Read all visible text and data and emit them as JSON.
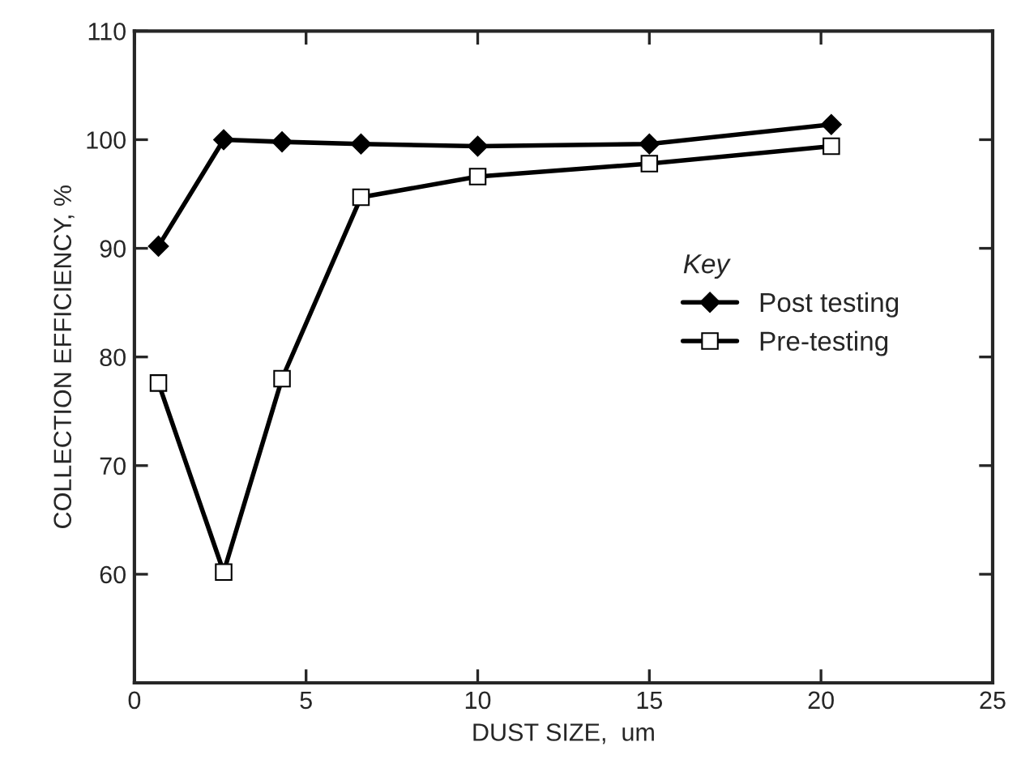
{
  "chart_data": {
    "type": "line",
    "xlabel": "DUST SIZE,  um",
    "ylabel": "COLLECTION EFFICIENCY, %",
    "legend_title": "Key",
    "legend": "right",
    "series": [
      {
        "name": "Post testing",
        "color": "#000000",
        "marker": "diamond",
        "x": [
          0.7,
          2.6,
          4.3,
          6.6,
          10,
          15,
          20.3
        ],
        "values": [
          90.2,
          100,
          99.8,
          99.6,
          99.4,
          99.6,
          101.4
        ]
      },
      {
        "name": "Pre-testing",
        "color": "#000000",
        "marker": "square",
        "x": [
          0.7,
          2.6,
          4.3,
          6.6,
          10,
          15,
          20.3
        ],
        "values": [
          77.6,
          60.2,
          78,
          94.7,
          96.6,
          97.8,
          99.4
        ]
      }
    ],
    "xlim": [
      0,
      25
    ],
    "xticks": [
      0,
      5,
      10,
      15,
      20,
      25
    ],
    "ylim": [
      50,
      110
    ],
    "yticks": [
      {
        "value": 50,
        "label": null
      },
      60,
      70,
      80,
      90,
      100,
      110
    ],
    "grid": false
  }
}
